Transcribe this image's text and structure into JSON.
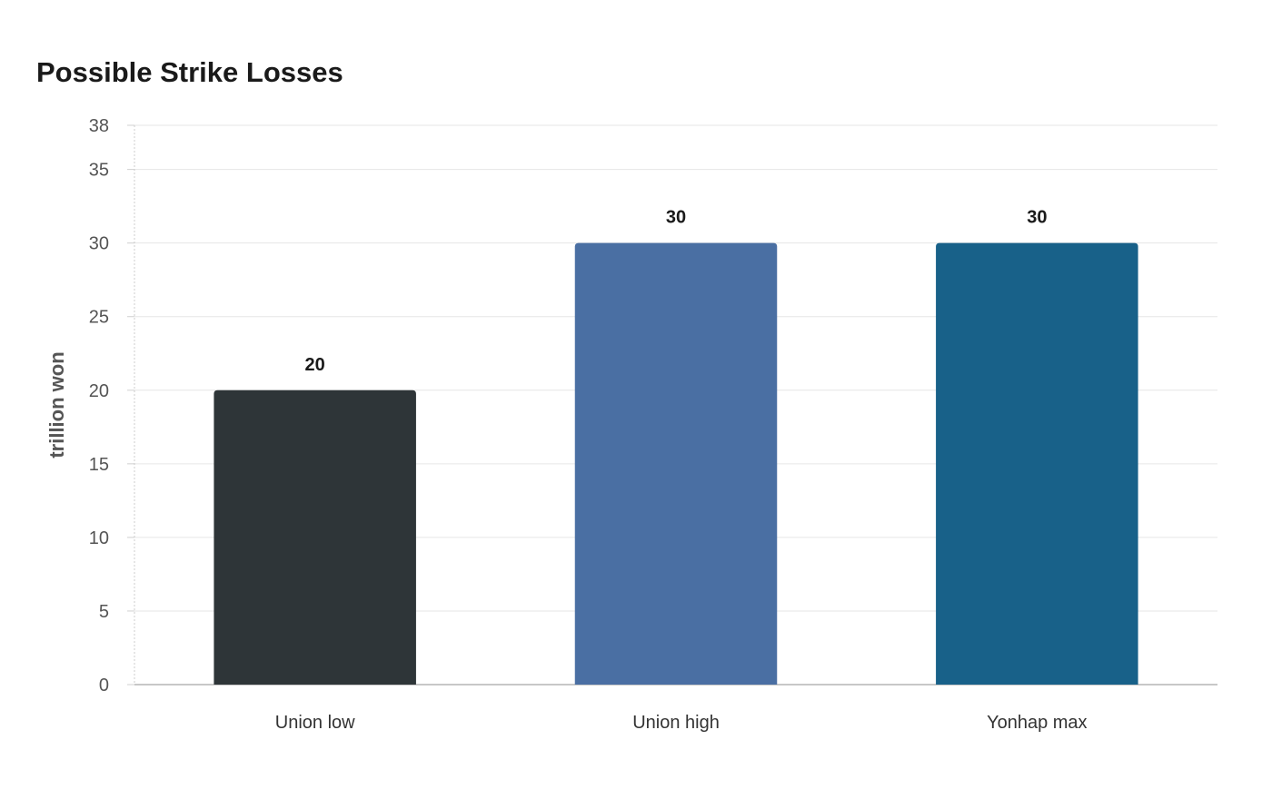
{
  "chart_data": {
    "type": "bar",
    "title": "Possible Strike Losses",
    "xlabel": "",
    "ylabel": "trillion won",
    "ylim": [
      0,
      38
    ],
    "yticks": [
      0,
      5,
      10,
      15,
      20,
      25,
      30,
      35,
      38
    ],
    "grid": true,
    "legend": "none",
    "categories": [
      "Union low",
      "Union high",
      "Yonhap max"
    ],
    "values": [
      20,
      30,
      30
    ],
    "data_labels": [
      "20",
      "30",
      "30"
    ],
    "colors": [
      "#2e3538",
      "#4a6fa3",
      "#186189"
    ]
  }
}
